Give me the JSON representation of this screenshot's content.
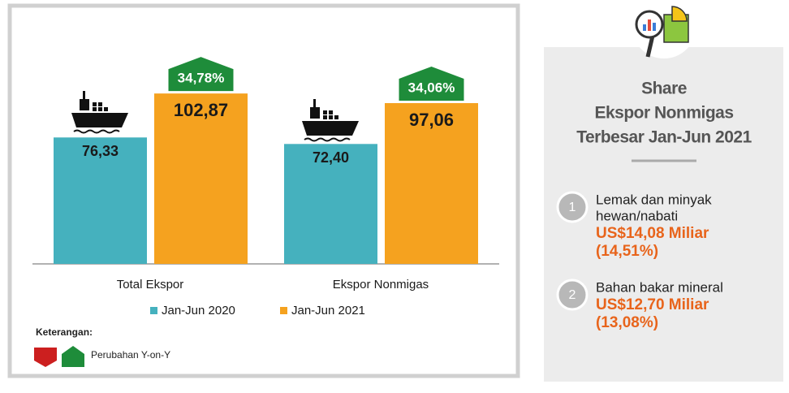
{
  "chart_data": {
    "type": "bar",
    "categories": [
      "Total Ekspor",
      "Ekspor Nonmigas"
    ],
    "series": [
      {
        "name": "Jan-Jun 2020",
        "color": "#45b1be",
        "values": [
          76.33,
          72.4
        ],
        "value_labels": [
          "76,33",
          "72,40"
        ]
      },
      {
        "name": "Jan-Jun 2021",
        "color": "#f5a21f",
        "values": [
          102.87,
          97.06
        ],
        "value_labels": [
          "102,87",
          "97,06"
        ]
      }
    ],
    "growth": {
      "color": "#1e8c3a",
      "values": [
        34.78,
        34.06
      ],
      "value_labels": [
        "34,78%",
        "34,06%"
      ]
    },
    "note": {
      "title": "Keterangan:",
      "label": "Perubahan Y-on-Y",
      "colors": [
        "#cc1f1f",
        "#1e8c3a"
      ]
    }
  },
  "share": {
    "title": [
      "Share",
      "Ekspor Nonmigas",
      "Terbesar Jan-Jun 2021"
    ],
    "items": [
      {
        "number": "1",
        "description": [
          "Lemak dan minyak",
          "hewan/nabati"
        ],
        "value": "US$14,08 Miliar",
        "percent": "(14,51%)"
      },
      {
        "number": "2",
        "description": [
          "Bahan bakar mineral"
        ],
        "value": "US$12,70 Miliar",
        "percent": "(13,08%)"
      }
    ]
  }
}
